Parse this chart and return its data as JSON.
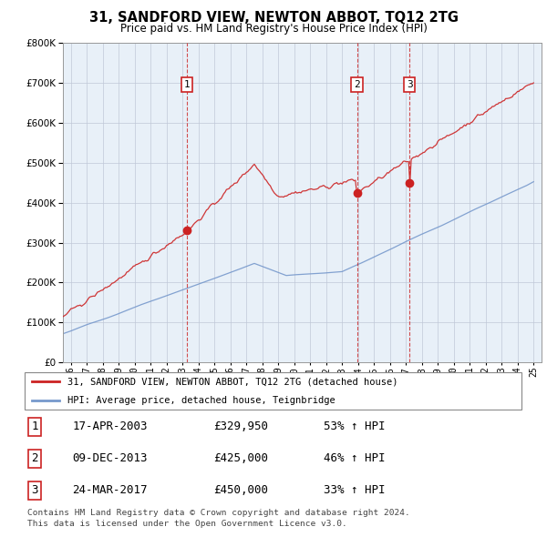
{
  "title": "31, SANDFORD VIEW, NEWTON ABBOT, TQ12 2TG",
  "subtitle": "Price paid vs. HM Land Registry's House Price Index (HPI)",
  "ylim": [
    0,
    800000
  ],
  "yticks": [
    0,
    100000,
    200000,
    300000,
    400000,
    500000,
    600000,
    700000,
    800000
  ],
  "xlim_start": 1995.5,
  "xlim_end": 2025.5,
  "sales": [
    {
      "date_num": 2003.29,
      "price": 329950,
      "label": "1"
    },
    {
      "date_num": 2013.93,
      "price": 425000,
      "label": "2"
    },
    {
      "date_num": 2017.23,
      "price": 450000,
      "label": "3"
    }
  ],
  "sale_line_color": "#cc2222",
  "hpi_line_color": "#7799cc",
  "vline_color": "#cc2222",
  "label_box_color": "#cc2222",
  "chart_bg_color": "#e8f0f8",
  "legend_entries": [
    "31, SANDFORD VIEW, NEWTON ABBOT, TQ12 2TG (detached house)",
    "HPI: Average price, detached house, Teignbridge"
  ],
  "table_rows": [
    {
      "num": "1",
      "date": "17-APR-2003",
      "price": "£329,950",
      "change": "53% ↑ HPI"
    },
    {
      "num": "2",
      "date": "09-DEC-2013",
      "price": "£425,000",
      "change": "46% ↑ HPI"
    },
    {
      "num": "3",
      "date": "24-MAR-2017",
      "price": "£450,000",
      "change": "33% ↑ HPI"
    }
  ],
  "footnote1": "Contains HM Land Registry data © Crown copyright and database right 2024.",
  "footnote2": "This data is licensed under the Open Government Licence v3.0.",
  "background_color": "#ffffff",
  "grid_color": "#c0c8d8"
}
